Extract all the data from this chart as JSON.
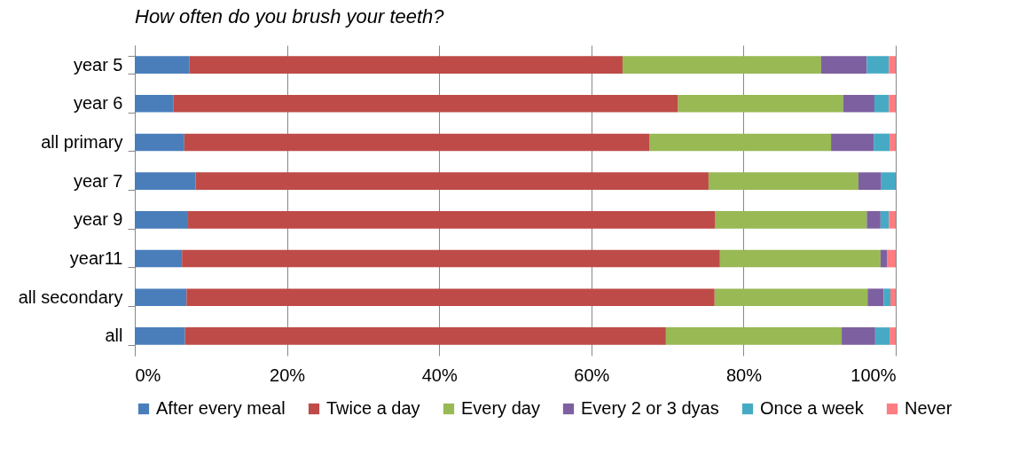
{
  "chart_data": {
    "type": "bar",
    "title": "How often do you brush your teeth?",
    "orientation": "horizontal",
    "stacked": true,
    "categories": [
      "year 5",
      "year 6",
      "all primary",
      "year 7",
      "year 9",
      "year11",
      "all secondary",
      "all"
    ],
    "series": [
      {
        "name": "After every meal",
        "color": "#4a7ebb",
        "values": [
          7.2,
          5.1,
          6.5,
          8.0,
          7.0,
          6.2,
          6.8,
          6.6
        ]
      },
      {
        "name": "Twice a day",
        "color": "#be4b48",
        "values": [
          56.9,
          66.3,
          61.1,
          67.4,
          69.3,
          70.7,
          69.4,
          63.2
        ]
      },
      {
        "name": "Every day",
        "color": "#98b954",
        "values": [
          26.1,
          21.7,
          23.9,
          19.7,
          19.9,
          21.1,
          20.1,
          23.1
        ]
      },
      {
        "name": "Every 2 or 3 dyas",
        "color": "#7d60a0",
        "values": [
          6.0,
          4.1,
          5.6,
          3.0,
          1.8,
          0.9,
          2.1,
          4.4
        ]
      },
      {
        "name": "Once a week",
        "color": "#46aac5",
        "values": [
          2.9,
          1.9,
          2.1,
          1.9,
          1.1,
          0,
          0.9,
          1.9
        ]
      },
      {
        "name": "Never",
        "color": "#ff7c80",
        "values": [
          0.9,
          0.9,
          0.8,
          0,
          0.9,
          1.1,
          0.7,
          0.8
        ]
      }
    ],
    "xlim": [
      0,
      100
    ],
    "xticks": [
      {
        "value": 0,
        "label": "0%"
      },
      {
        "value": 20,
        "label": "20%"
      },
      {
        "value": 40,
        "label": "40%"
      },
      {
        "value": 60,
        "label": "60%"
      },
      {
        "value": 80,
        "label": "80%"
      },
      {
        "value": 100,
        "label": "100%"
      }
    ],
    "grid": "x",
    "legend": "bottom"
  }
}
